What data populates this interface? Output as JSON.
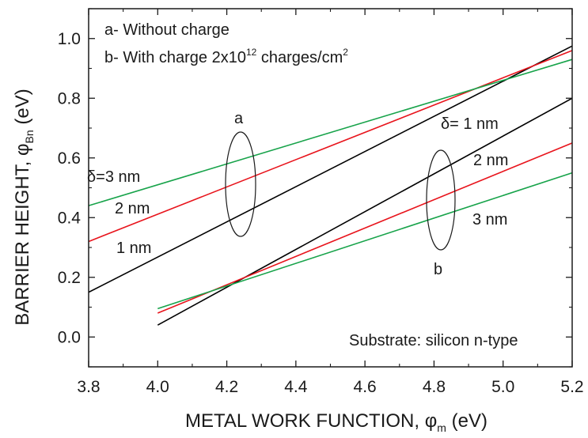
{
  "chart_data": {
    "type": "line",
    "xlabel_main": "METAL WORK FUNCTION, ",
    "xlabel_symbol": "φ",
    "xlabel_sub": "m",
    "xlabel_unit": " (eV)",
    "ylabel_main": "BARRIER HEIGHT, ",
    "ylabel_symbol": "φ",
    "ylabel_sub": "Bn",
    "ylabel_unit": " (eV)",
    "xlim": [
      3.8,
      5.2
    ],
    "ylim": [
      -0.1,
      1.1
    ],
    "x_ticks": [
      "3.8",
      "4.0",
      "4.2",
      "4.4",
      "4.6",
      "4.8",
      "5.0",
      "5.2"
    ],
    "y_ticks": [
      "0.0",
      "0.2",
      "0.4",
      "0.6",
      "0.8",
      "1.0"
    ],
    "legend": {
      "line_a": "a- Without charge",
      "line_b_prefix": "b- With charge 2x10",
      "line_b_exp": "12",
      "line_b_mid": " charges/cm",
      "line_b_exp2": "2"
    },
    "substrate_note": "Substrate: silicon n-type",
    "group_labels": {
      "a": "a",
      "b": "b"
    },
    "curve_labels": {
      "a_delta3": "δ=3 nm",
      "a_2nm": "2 nm",
      "a_1nm": "1 nm",
      "b_delta1": "δ= 1 nm",
      "b_2nm": "2 nm",
      "b_3nm": "3 nm"
    },
    "series": [
      {
        "group": "a",
        "delta_nm": 1,
        "color": "#000000",
        "x": [
          3.8,
          5.2
        ],
        "y": [
          0.15,
          0.975
        ]
      },
      {
        "group": "a",
        "delta_nm": 2,
        "color": "#e8141c",
        "x": [
          3.8,
          5.2
        ],
        "y": [
          0.32,
          0.96
        ]
      },
      {
        "group": "a",
        "delta_nm": 3,
        "color": "#17a34a",
        "x": [
          3.8,
          5.2
        ],
        "y": [
          0.44,
          0.93
        ]
      },
      {
        "group": "b",
        "delta_nm": 1,
        "color": "#000000",
        "x": [
          4.0,
          5.2
        ],
        "y": [
          0.04,
          0.8
        ]
      },
      {
        "group": "b",
        "delta_nm": 2,
        "color": "#e8141c",
        "x": [
          4.0,
          5.2
        ],
        "y": [
          0.08,
          0.65
        ]
      },
      {
        "group": "b",
        "delta_nm": 3,
        "color": "#17a34a",
        "x": [
          4.0,
          5.2
        ],
        "y": [
          0.095,
          0.55
        ]
      }
    ]
  }
}
